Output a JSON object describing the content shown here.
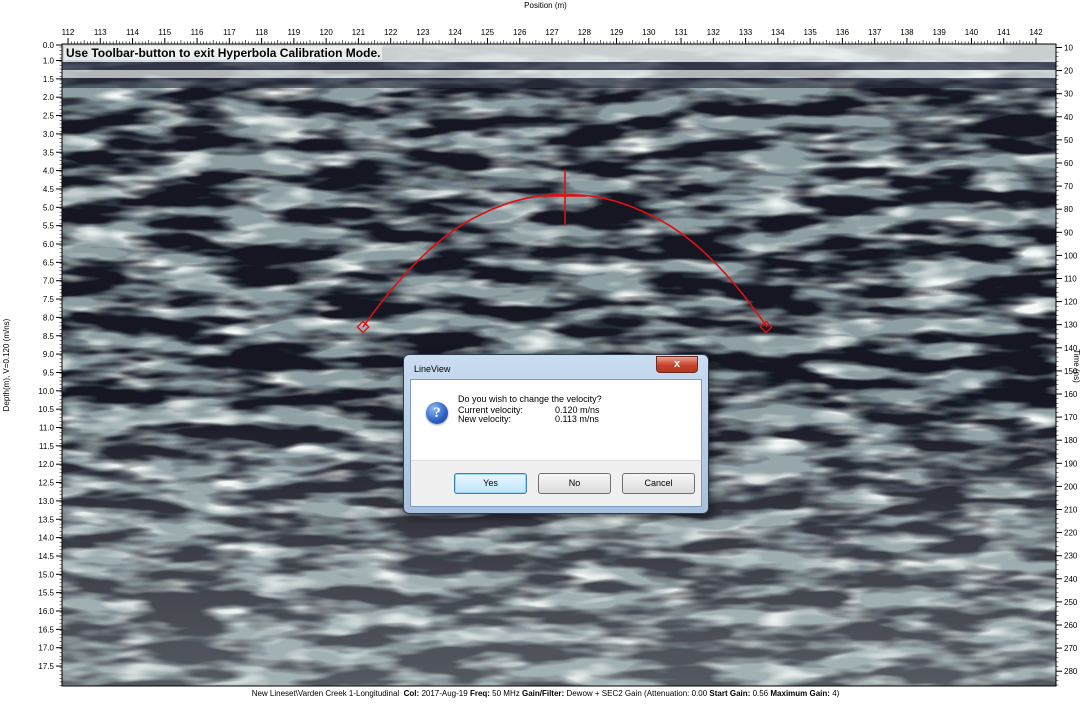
{
  "axes": {
    "position_title": "Position (m)",
    "depth_title": "Depth(m), V=0.120 (m/ns)",
    "time_title": "Time (ns)",
    "position_ticks": [
      "112",
      "113",
      "114",
      "115",
      "116",
      "117",
      "118",
      "119",
      "120",
      "121",
      "122",
      "123",
      "124",
      "125",
      "126",
      "127",
      "128",
      "129",
      "130",
      "131",
      "132",
      "133",
      "134",
      "135",
      "136",
      "137",
      "138",
      "139",
      "140",
      "141",
      "142"
    ],
    "depth_ticks": [
      "0.0",
      "1.0",
      "1.5",
      "2.0",
      "2.5",
      "3.0",
      "3.5",
      "4.0",
      "4.5",
      "5.0",
      "5.5",
      "6.0",
      "6.5",
      "7.0",
      "7.5",
      "8.0",
      "8.5",
      "9.0",
      "9.5",
      "10.0",
      "10.5",
      "11.0",
      "11.5",
      "12.0",
      "12.5",
      "13.0",
      "13.5",
      "14.0",
      "14.5",
      "15.0",
      "15.5",
      "16.0",
      "16.5",
      "17.0",
      "17.5"
    ],
    "time_ticks": [
      "10",
      "20",
      "30",
      "40",
      "50",
      "60",
      "70",
      "80",
      "90",
      "100",
      "110",
      "120",
      "130",
      "140",
      "150",
      "160",
      "170",
      "180",
      "190",
      "200",
      "210",
      "220",
      "230",
      "240",
      "250",
      "260",
      "270",
      "280"
    ]
  },
  "banner": "Use Toolbar-button to exit Hyperbola Calibration Mode.",
  "status": {
    "path": "New Lineset\\Varden Creek 1-Longitudinal",
    "col_label": "Col:",
    "col_value": "2017-Aug-19",
    "freq_label": "Freq:",
    "freq_value": "50 MHz",
    "gain_label": "Gain/Filter:",
    "gain_value": "Dewow + SEC2 Gain (Attenuation: 0.00",
    "start_label": "Start Gain:",
    "start_value": "0.56",
    "max_label": "Maximum Gain:",
    "max_value": "4)"
  },
  "dialog": {
    "title": "LineView",
    "close_label": "x",
    "icon": "question-icon",
    "question": "Do you wish to change the velocity?",
    "current_label": "Current velocity:",
    "current_value": "0.120 m/ns",
    "new_label": "New velocity:",
    "new_value": "0.113 m/ns",
    "yes_label": "Yes",
    "no_label": "No",
    "cancel_label": "Cancel"
  },
  "colors": {
    "hyperbola": "#dd1111",
    "dialog_frame": "#b3cae6",
    "close_button": "#c7422c"
  }
}
